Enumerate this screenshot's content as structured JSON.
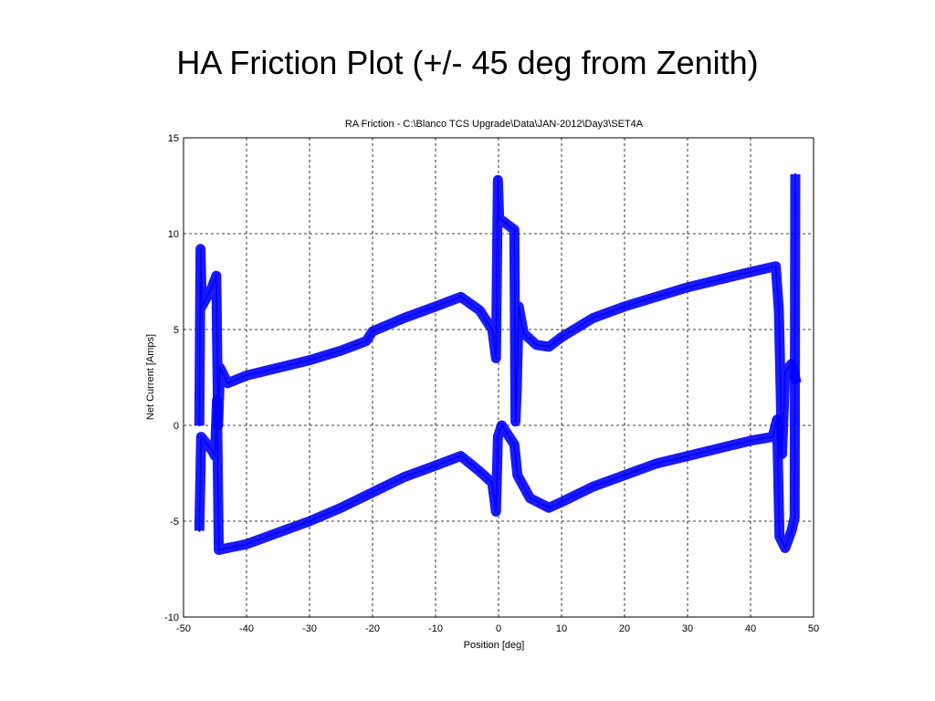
{
  "slide": {
    "title": "HA Friction Plot (+/- 45 deg from Zenith)"
  },
  "colors": {
    "series": "#0000ff",
    "axes": "#000000",
    "background": "#ffffff"
  },
  "chart_data": {
    "type": "line",
    "title": "RA Friction - C:\\Blanco TCS Upgrade\\Data\\JAN-2012\\Day3\\SET4A",
    "xlabel": "Position [deg]",
    "ylabel": "Net Current [Amps]",
    "xlim": [
      -50,
      50
    ],
    "ylim": [
      -10,
      15
    ],
    "xticks": [
      -50,
      -40,
      -30,
      -20,
      -10,
      0,
      10,
      20,
      30,
      40,
      50
    ],
    "yticks": [
      -10,
      -5,
      0,
      5,
      10,
      15
    ],
    "grid": true,
    "series": [
      {
        "values": [
          [
            -47.5,
            0.0
          ],
          [
            -47.3,
            9.2
          ],
          [
            -47.1,
            6.2
          ],
          [
            -45.5,
            7.2
          ],
          [
            -44.8,
            7.8
          ],
          [
            -44.5,
            0.0
          ],
          [
            -44.2,
            3.0
          ],
          [
            -43.0,
            2.2
          ],
          [
            -40,
            2.6
          ],
          [
            -35,
            3.0
          ],
          [
            -30,
            3.4
          ],
          [
            -25,
            3.9
          ],
          [
            -21,
            4.4
          ],
          [
            -20,
            4.9
          ],
          [
            -15,
            5.6
          ],
          [
            -10,
            6.2
          ],
          [
            -6,
            6.7
          ],
          [
            -3,
            6.0
          ],
          [
            -1,
            5.0
          ],
          [
            -0.4,
            3.5
          ],
          [
            -0.1,
            12.8
          ],
          [
            0.1,
            10.8
          ],
          [
            2.5,
            10.2
          ],
          [
            2.7,
            0.2
          ],
          [
            2.9,
            2.0
          ],
          [
            3.2,
            6.2
          ],
          [
            4,
            4.8
          ],
          [
            6,
            4.2
          ],
          [
            8,
            4.1
          ],
          [
            10,
            4.6
          ],
          [
            15,
            5.6
          ],
          [
            20,
            6.2
          ],
          [
            25,
            6.7
          ],
          [
            30,
            7.2
          ],
          [
            35,
            7.6
          ],
          [
            40,
            8.0
          ],
          [
            44,
            8.3
          ],
          [
            44.5,
            6.0
          ],
          [
            45,
            -1.5
          ],
          [
            45.5,
            2.8
          ],
          [
            46.5,
            3.2
          ],
          [
            47.3,
            2.2
          ]
        ]
      },
      {
        "values": [
          [
            -47.5,
            -5.5
          ],
          [
            -47.2,
            -0.6
          ],
          [
            -45.5,
            -1.3
          ],
          [
            -45.0,
            -1.6
          ],
          [
            -44.7,
            1.3
          ],
          [
            -44.4,
            -6.5
          ],
          [
            -43,
            -6.4
          ],
          [
            -40,
            -6.2
          ],
          [
            -35,
            -5.6
          ],
          [
            -30,
            -5.0
          ],
          [
            -25,
            -4.3
          ],
          [
            -20,
            -3.5
          ],
          [
            -15,
            -2.7
          ],
          [
            -10,
            -2.1
          ],
          [
            -6,
            -1.6
          ],
          [
            -3,
            -2.4
          ],
          [
            -1,
            -3.0
          ],
          [
            -0.4,
            -4.5
          ],
          [
            -0.1,
            -0.6
          ],
          [
            0.5,
            0.0
          ],
          [
            2.5,
            -1.0
          ],
          [
            3,
            -2.6
          ],
          [
            5,
            -3.8
          ],
          [
            8,
            -4.3
          ],
          [
            10,
            -4.0
          ],
          [
            15,
            -3.2
          ],
          [
            20,
            -2.6
          ],
          [
            25,
            -2.0
          ],
          [
            30,
            -1.6
          ],
          [
            35,
            -1.2
          ],
          [
            40,
            -0.8
          ],
          [
            43.5,
            -0.6
          ],
          [
            44.2,
            0.3
          ],
          [
            44.6,
            -5.8
          ],
          [
            45.5,
            -6.4
          ],
          [
            46.5,
            -5.5
          ],
          [
            47,
            -4.8
          ],
          [
            47.1,
            13.1
          ]
        ]
      }
    ]
  }
}
